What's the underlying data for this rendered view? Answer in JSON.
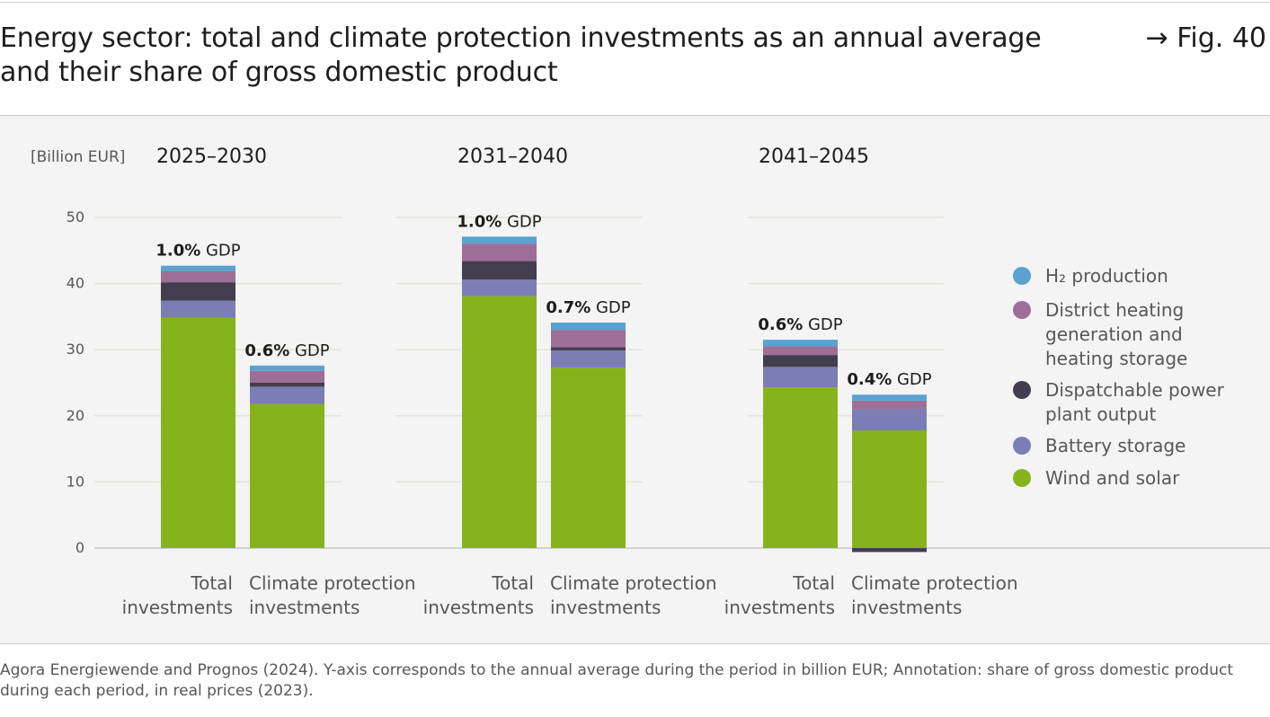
{
  "title": "Energy sector: total and climate protection investments as an annual average and their share of gross domestic product",
  "fig_ref": "→ Fig. 40",
  "source": "Agora Energiewende and Prognos (2024). Y-axis corresponds to the annual average during the period in billion EUR; Annotation: share of gross domestic product during each period, in real prices (2023).",
  "chart_data": {
    "type": "bar",
    "stacked": true,
    "ylabel": "[Billion EUR]",
    "ylim": [
      0,
      50
    ],
    "yticks": [
      0,
      10,
      20,
      30,
      40,
      50
    ],
    "categories": [
      "Total investments",
      "Climate protection investments"
    ],
    "category_lines": [
      [
        "Total",
        "investments"
      ],
      [
        "Climate protection",
        "investments"
      ]
    ],
    "gdp_suffix": "GDP",
    "periods": [
      {
        "label": "2025–2030",
        "bars": [
          {
            "gdp": "1.0%",
            "values": {
              "wind": 34.8,
              "battery": 2.6,
              "dispatch": 2.8,
              "district": 1.7,
              "h2": 0.8
            }
          },
          {
            "gdp": "0.6%",
            "values": {
              "wind": 21.8,
              "battery": 2.6,
              "dispatch": 0.6,
              "district": 1.8,
              "h2": 0.8
            }
          }
        ]
      },
      {
        "label": "2031–2040",
        "bars": [
          {
            "gdp": "1.0%",
            "values": {
              "wind": 38.1,
              "battery": 2.5,
              "dispatch": 2.8,
              "district": 2.6,
              "h2": 1.1
            }
          },
          {
            "gdp": "0.7%",
            "values": {
              "wind": 27.3,
              "battery": 2.6,
              "dispatch": 0.5,
              "district": 2.6,
              "h2": 1.1
            }
          }
        ]
      },
      {
        "label": "2041–2045",
        "bars": [
          {
            "gdp": "0.6%",
            "values": {
              "wind": 24.3,
              "battery": 3.1,
              "dispatch": 1.8,
              "district": 1.3,
              "h2": 1.0
            }
          },
          {
            "gdp": "0.4%",
            "values": {
              "wind": 17.8,
              "battery": 3.2,
              "dispatch": -0.6,
              "district": 1.3,
              "h2": 0.9
            }
          }
        ]
      }
    ],
    "series": [
      {
        "key": "wind",
        "name": "Wind and solar",
        "lines": [
          "Wind and solar"
        ],
        "color": "#86b31c"
      },
      {
        "key": "battery",
        "name": "Battery storage",
        "lines": [
          "Battery storage"
        ],
        "color": "#7b7db4"
      },
      {
        "key": "dispatch",
        "name": "Dispatchable power plant output",
        "lines": [
          "Dispatchable power",
          "plant output"
        ],
        "color": "#433d50"
      },
      {
        "key": "district",
        "name": "District heating generation and heating storage",
        "lines": [
          "District heating",
          "generation and",
          "heating storage"
        ],
        "color": "#9d6f97"
      },
      {
        "key": "h2",
        "name": "H2 production",
        "lines": [
          "H₂ production"
        ],
        "color": "#5aa2cf"
      }
    ]
  }
}
